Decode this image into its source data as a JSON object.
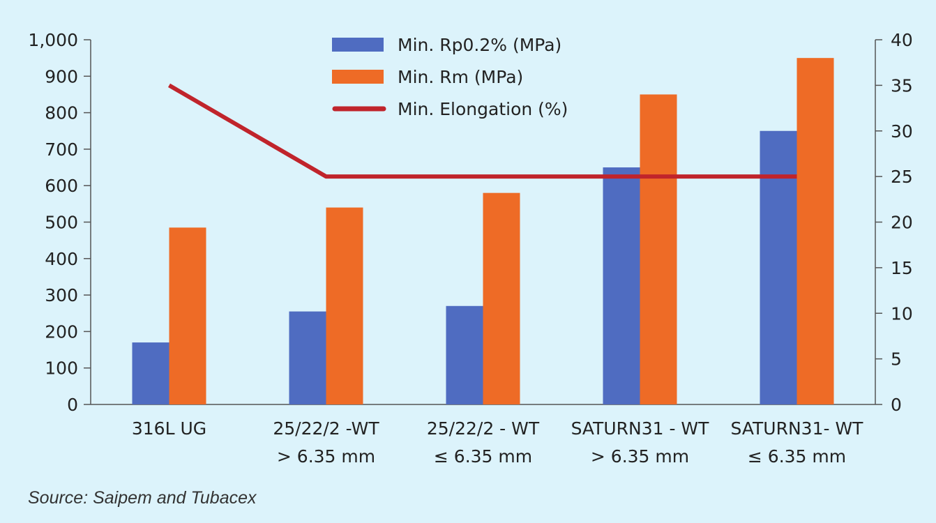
{
  "chart_data": {
    "type": "bar",
    "categories": [
      [
        "316L UG"
      ],
      [
        "25/22/2 -WT",
        "> 6.35 mm"
      ],
      [
        "25/22/2 - WT",
        "≤ 6.35 mm"
      ],
      [
        "SATURN31 - WT",
        "> 6.35 mm"
      ],
      [
        "SATURN31- WT",
        "≤ 6.35 mm"
      ]
    ],
    "series": [
      {
        "name": "Min. Rp0.2% (MPa)",
        "type": "bar",
        "axis": "left",
        "color": "#4f6cc1",
        "values": [
          170,
          255,
          270,
          650,
          750
        ]
      },
      {
        "name": "Min. Rm (MPa)",
        "type": "bar",
        "axis": "left",
        "color": "#ee6b26",
        "values": [
          485,
          540,
          580,
          850,
          950
        ]
      },
      {
        "name": "Min. Elongation (%)",
        "type": "line",
        "axis": "right",
        "color": "#c0242b",
        "values": [
          35,
          25,
          25,
          25,
          25
        ]
      }
    ],
    "y_left": {
      "min": 0,
      "max": 1000,
      "ticks": [
        0,
        100,
        200,
        300,
        400,
        500,
        600,
        700,
        800,
        900,
        1000
      ],
      "tick_labels": [
        "0",
        "100",
        "200",
        "300",
        "400",
        "500",
        "600",
        "700",
        "800",
        "900",
        "1,000"
      ]
    },
    "y_right": {
      "min": 0,
      "max": 40,
      "ticks": [
        0,
        5,
        10,
        15,
        20,
        25,
        30,
        35,
        40
      ],
      "tick_labels": [
        "0",
        "5",
        "10",
        "15",
        "20",
        "25",
        "30",
        "35",
        "40"
      ]
    },
    "legend": "top-center",
    "grid": false
  },
  "source": "Source: Saipem and Tubacex"
}
